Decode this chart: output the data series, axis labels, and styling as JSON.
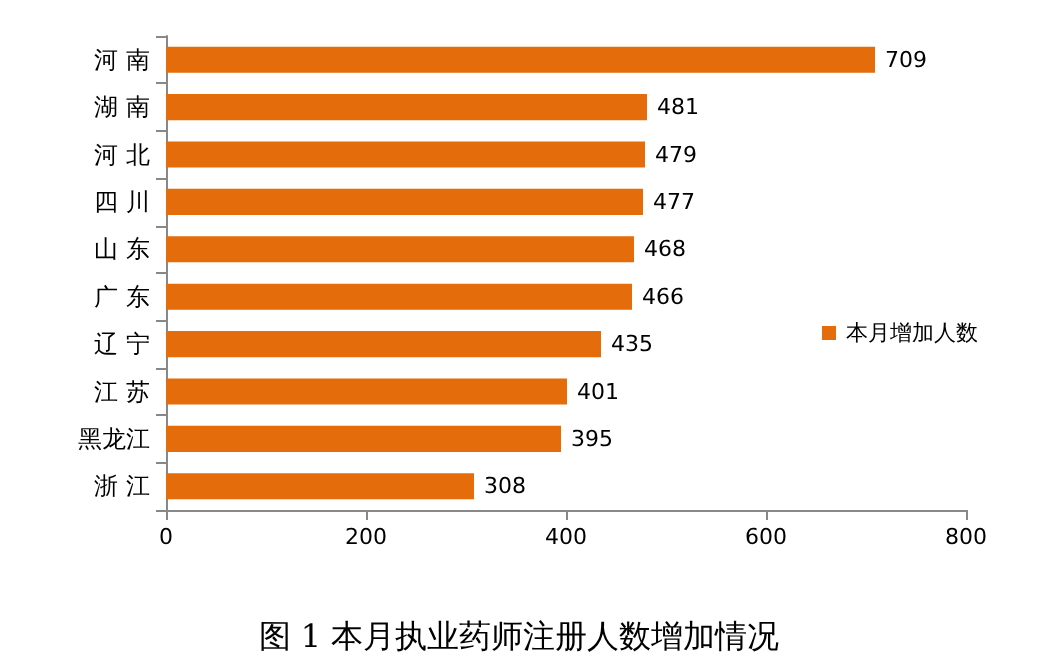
{
  "chart_data": {
    "type": "bar",
    "orientation": "horizontal",
    "title": "图 1 本月执业药师注册人数增加情况",
    "categories": [
      "河 南",
      "湖 南",
      "河 北",
      "四 川",
      "山 东",
      "广 东",
      "辽 宁",
      "江 苏",
      "黑龙江",
      "浙 江"
    ],
    "series": [
      {
        "name": "本月增加人数",
        "color": "#e46c0a",
        "values": [
          709,
          481,
          479,
          477,
          468,
          466,
          435,
          401,
          395,
          308
        ]
      }
    ],
    "xlim": [
      0,
      800
    ],
    "xticks": [
      0,
      200,
      400,
      600,
      800
    ],
    "grid": false,
    "legend": "right",
    "data_labels": true
  }
}
